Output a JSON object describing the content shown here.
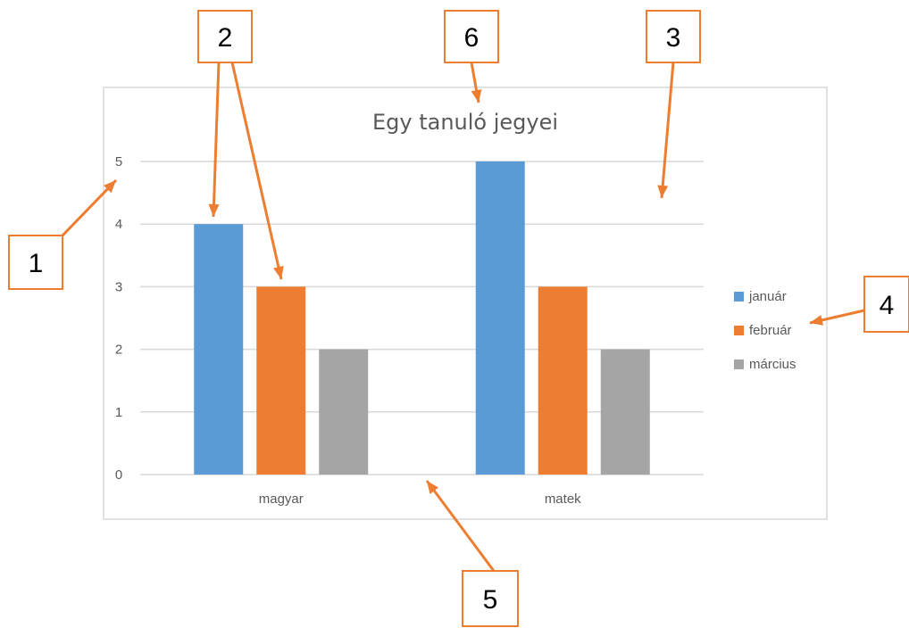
{
  "chart_data": {
    "type": "bar",
    "title": "Egy tanuló jegyei",
    "categories": [
      "magyar",
      "matek"
    ],
    "series": [
      {
        "name": "január",
        "values": [
          4,
          5
        ],
        "color": "#5b9bd5"
      },
      {
        "name": "február",
        "values": [
          3,
          3
        ],
        "color": "#ed7d31"
      },
      {
        "name": "március",
        "values": [
          2,
          2
        ],
        "color": "#a5a5a5"
      }
    ],
    "ylim": [
      0,
      5
    ],
    "yticks": [
      "0",
      "1",
      "2",
      "3",
      "4",
      "5"
    ],
    "xlabel": "",
    "ylabel": "",
    "grid": true,
    "legend_position": "right"
  },
  "callouts": [
    {
      "label": "1"
    },
    {
      "label": "2"
    },
    {
      "label": "3"
    },
    {
      "label": "4"
    },
    {
      "label": "5"
    },
    {
      "label": "6"
    }
  ]
}
